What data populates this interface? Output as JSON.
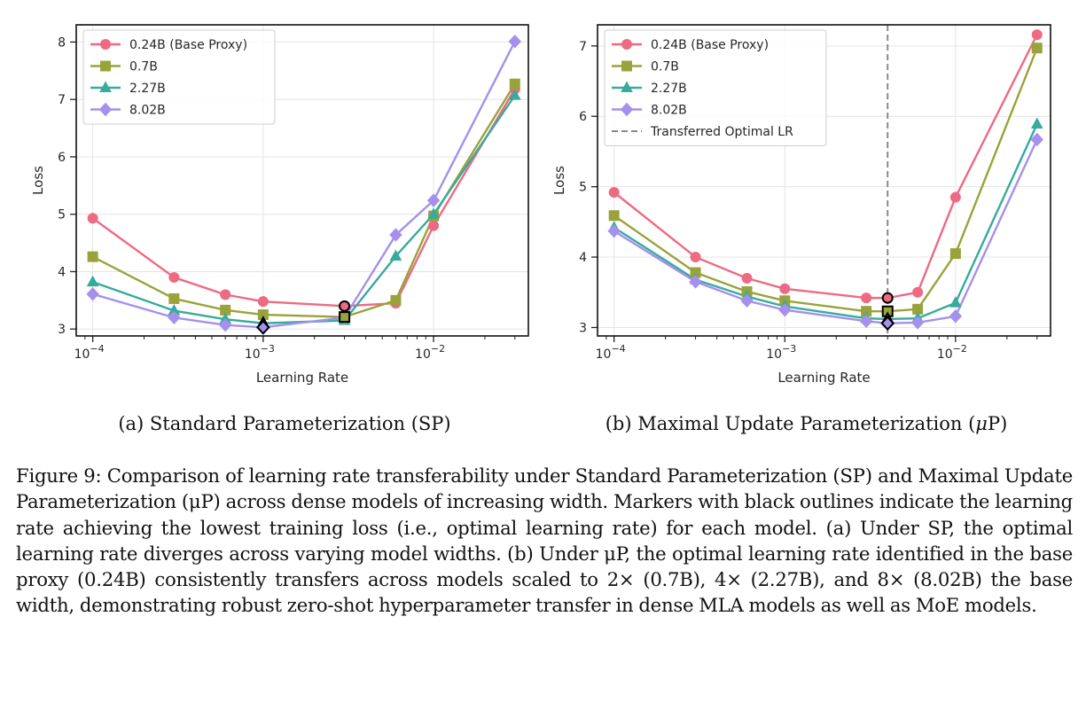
{
  "chart_data": [
    {
      "type": "line",
      "subcaption": "(a) Standard Parameterization (SP)",
      "xlabel": "Learning Rate",
      "ylabel": "Loss",
      "xscale": "log",
      "xlim": [
        8e-05,
        0.036
      ],
      "ylim": [
        2.88,
        8.3
      ],
      "yticks": [
        3,
        4,
        5,
        6,
        7,
        8
      ],
      "xticks": [
        {
          "value": 0.0001,
          "base": "10",
          "exp": "−4"
        },
        {
          "value": 0.001,
          "base": "10",
          "exp": "−3"
        },
        {
          "value": 0.01,
          "base": "10",
          "exp": "−2"
        }
      ],
      "grid": true,
      "legend": "top-left",
      "x": [
        0.0001,
        0.0003,
        0.0006,
        0.001,
        0.003,
        0.006,
        0.01,
        0.03
      ],
      "series": [
        {
          "name": "0.24B (Base Proxy)",
          "color": "#ee6a83",
          "marker": "circle",
          "values": [
            4.93,
            3.9,
            3.6,
            3.48,
            3.4,
            3.45,
            4.8,
            7.18
          ],
          "optimal_index": 4
        },
        {
          "name": "0.7B",
          "color": "#99a33b",
          "marker": "square",
          "values": [
            4.26,
            3.53,
            3.33,
            3.25,
            3.21,
            3.5,
            4.97,
            7.27
          ],
          "optimal_index": 4
        },
        {
          "name": "2.27B",
          "color": "#37ab9c",
          "marker": "triangle",
          "values": [
            3.82,
            3.32,
            3.17,
            3.1,
            3.15,
            4.27,
            5.0,
            7.07
          ],
          "optimal_index": 3
        },
        {
          "name": "8.02B",
          "color": "#a590ed",
          "marker": "diamond",
          "values": [
            3.61,
            3.2,
            3.07,
            3.03,
            3.2,
            4.64,
            5.24,
            8.01
          ],
          "optimal_index": 3
        }
      ]
    },
    {
      "type": "line",
      "subcaption": "(b) Maximal Update Parameterization (",
      "subcaption_mu": "μ",
      "subcaption_end": "P)",
      "xlabel": "Learning Rate",
      "ylabel": "Loss",
      "xscale": "log",
      "xlim": [
        8e-05,
        0.036
      ],
      "ylim": [
        2.88,
        7.3
      ],
      "yticks": [
        3,
        4,
        5,
        6,
        7
      ],
      "xticks": [
        {
          "value": 0.0001,
          "base": "10",
          "exp": "−4"
        },
        {
          "value": 0.001,
          "base": "10",
          "exp": "−3"
        },
        {
          "value": 0.01,
          "base": "10",
          "exp": "−2"
        }
      ],
      "grid": true,
      "legend": "top-left",
      "vline": {
        "x": 0.004,
        "label": "Transferred Optimal LR",
        "color": "#8a8a8a"
      },
      "x": [
        0.0001,
        0.0003,
        0.0006,
        0.001,
        0.003,
        0.004,
        0.006,
        0.01,
        0.03
      ],
      "series": [
        {
          "name": "0.24B (Base Proxy)",
          "color": "#ee6a83",
          "marker": "circle",
          "values": [
            4.92,
            4.0,
            3.7,
            3.55,
            3.42,
            3.42,
            3.5,
            4.85,
            7.16
          ],
          "optimal_index": 5
        },
        {
          "name": "0.7B",
          "color": "#99a33b",
          "marker": "square",
          "values": [
            4.59,
            3.78,
            3.51,
            3.38,
            3.23,
            3.23,
            3.26,
            4.05,
            6.97
          ],
          "optimal_index": 5
        },
        {
          "name": "2.27B",
          "color": "#37ab9c",
          "marker": "triangle",
          "values": [
            4.42,
            3.68,
            3.44,
            3.3,
            3.13,
            3.12,
            3.13,
            3.35,
            5.89
          ],
          "optimal_index": 5
        },
        {
          "name": "8.02B",
          "color": "#a590ed",
          "marker": "diamond",
          "values": [
            4.37,
            3.65,
            3.38,
            3.25,
            3.09,
            3.06,
            3.07,
            3.16,
            5.67
          ],
          "optimal_index": 5
        }
      ]
    }
  ],
  "caption": "Figure 9: Comparison of learning rate transferability under Standard Parameterization (SP) and Maximal Update Parameterization (μP) across dense models of increasing width. Markers with black outlines indicate the learning rate achieving the lowest training loss (i.e., optimal learning rate) for each model. (a) Under SP, the optimal learning rate diverges across varying model widths. (b) Under μP, the optimal learning rate identified in the base proxy (0.24B) consistently transfers across models scaled to 2× (0.7B), 4× (2.27B), and 8× (8.02B) the base width, demonstrating robust zero-shot hyperparameter transfer in dense MLA models as well as MoE models."
}
